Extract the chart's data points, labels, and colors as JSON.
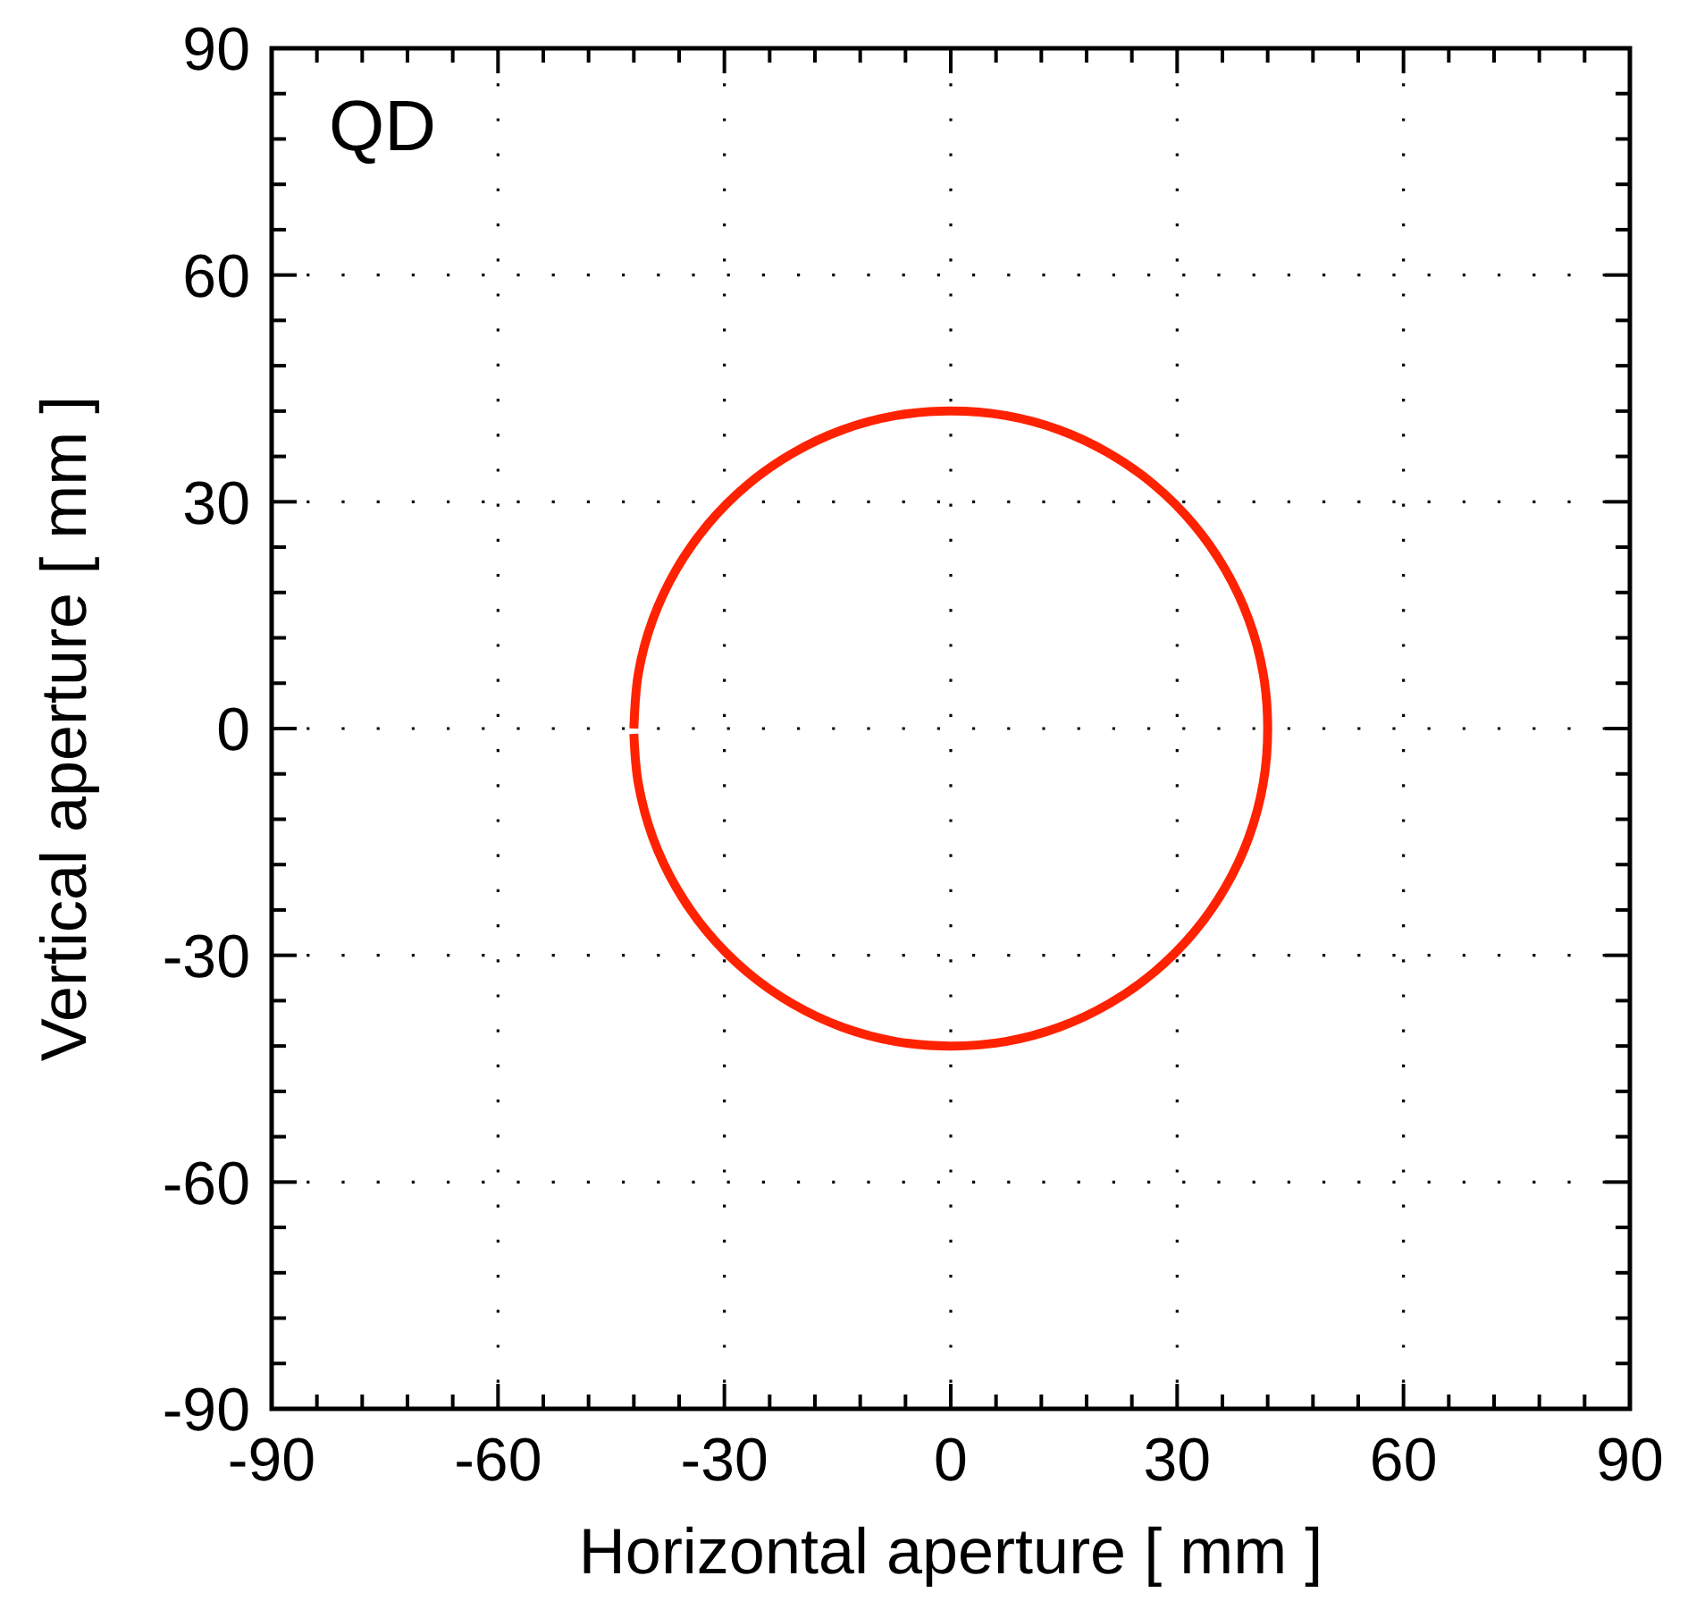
{
  "chart_data": {
    "type": "line",
    "title": "QD",
    "xlabel": "Horizontal aperture [ mm ]",
    "ylabel": "Vertical aperture [ mm ]",
    "xlim": [
      -90,
      90
    ],
    "ylim": [
      -90,
      90
    ],
    "xticks": [
      -90,
      {
        "value": -84,
        "label": null
      },
      {
        "value": -78,
        "label": null
      },
      {
        "value": -72,
        "label": null
      },
      {
        "value": -66,
        "label": null
      },
      -60,
      {
        "value": -54,
        "label": null
      },
      {
        "value": -48,
        "label": null
      },
      {
        "value": -42,
        "label": null
      },
      {
        "value": -36,
        "label": null
      },
      -30,
      {
        "value": -24,
        "label": null
      },
      {
        "value": -18,
        "label": null
      },
      {
        "value": -12,
        "label": null
      },
      {
        "value": -6,
        "label": null
      },
      0,
      {
        "value": 6,
        "label": null
      },
      {
        "value": 12,
        "label": null
      },
      {
        "value": 18,
        "label": null
      },
      {
        "value": 24,
        "label": null
      },
      30,
      {
        "value": 36,
        "label": null
      },
      {
        "value": 42,
        "label": null
      },
      {
        "value": 48,
        "label": null
      },
      {
        "value": 54,
        "label": null
      },
      60,
      {
        "value": 66,
        "label": null
      },
      {
        "value": 72,
        "label": null
      },
      {
        "value": 78,
        "label": null
      },
      {
        "value": 84,
        "label": null
      },
      90
    ],
    "yticks": [
      -90,
      {
        "value": -84,
        "label": null
      },
      {
        "value": -78,
        "label": null
      },
      {
        "value": -72,
        "label": null
      },
      {
        "value": -66,
        "label": null
      },
      -60,
      {
        "value": -54,
        "label": null
      },
      {
        "value": -48,
        "label": null
      },
      {
        "value": -42,
        "label": null
      },
      {
        "value": -36,
        "label": null
      },
      -30,
      {
        "value": -24,
        "label": null
      },
      {
        "value": -18,
        "label": null
      },
      {
        "value": -12,
        "label": null
      },
      {
        "value": -6,
        "label": null
      },
      0,
      {
        "value": 6,
        "label": null
      },
      {
        "value": 12,
        "label": null
      },
      {
        "value": 18,
        "label": null
      },
      {
        "value": 24,
        "label": null
      },
      30,
      {
        "value": 36,
        "label": null
      },
      {
        "value": 42,
        "label": null
      },
      {
        "value": 48,
        "label": null
      },
      {
        "value": 54,
        "label": null
      },
      60,
      {
        "value": 66,
        "label": null
      },
      {
        "value": 72,
        "label": null
      },
      {
        "value": 78,
        "label": null
      },
      {
        "value": 84,
        "label": null
      },
      90
    ],
    "grid": true,
    "marker": "none",
    "line_style": "solid",
    "series": [
      {
        "color": "#ff2200",
        "x": [
          -42,
          -41.4,
          -39.5,
          -36.4,
          -32.2,
          -27,
          -21,
          -14.4,
          -7.3,
          0,
          7.3,
          14.4,
          21,
          27,
          32.2,
          36.4,
          39.5,
          41.4,
          42,
          41.4,
          39.5,
          36.4,
          32.2,
          27,
          21,
          14.4,
          7.3,
          0,
          -7.3,
          -14.4,
          -21,
          -27,
          -32.2,
          -36.4,
          -39.5,
          -41.4,
          -42
        ],
        "values": [
          0,
          7.3,
          14.4,
          21,
          27,
          32.2,
          36.4,
          39.5,
          41.4,
          42,
          41.4,
          39.5,
          36.4,
          32.2,
          27,
          21,
          14.4,
          7.3,
          0,
          -7.3,
          -14.4,
          -21,
          -27,
          -32.2,
          -36.4,
          -39.5,
          -41.4,
          -42,
          -41.4,
          -39.5,
          -36.4,
          -32.2,
          -27,
          -21,
          -14.4,
          -7.3,
          -0.7
        ]
      }
    ]
  }
}
